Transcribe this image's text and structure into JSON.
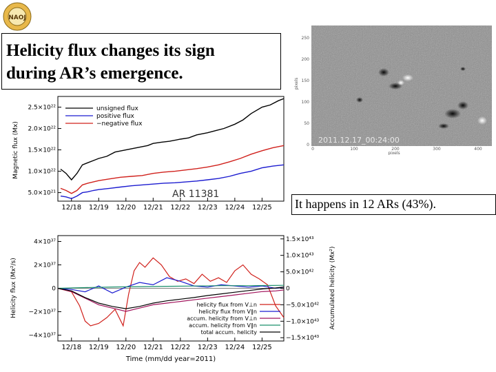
{
  "slide": {
    "title_line1": "Helicity flux changes its sign",
    "title_line2": "during AR’s emergence.",
    "note": "It happens in 12 ARs (43%).",
    "logo_text": "NAOJ"
  },
  "magnetogram": {
    "timestamp": "2011.12.17_00:24:00",
    "xlabel": "pixels",
    "ylabel": "pixels",
    "xticks": [
      "0",
      "100",
      "200",
      "300",
      "400"
    ],
    "yticks": [
      "0",
      "50",
      "100",
      "150",
      "200",
      "250"
    ]
  },
  "chart_data": [
    {
      "type": "line",
      "ylabel": "Magnetic flux (Mx)",
      "annotation": "AR 11381",
      "x_ticks": [
        "12/18",
        "12/19",
        "12/20",
        "12/21",
        "12/22",
        "12/23",
        "12/24",
        "12/25"
      ],
      "y_ticks": [
        "5.0×10²¹",
        "1.0×10²²",
        "1.5×10²²",
        "2.0×10²²",
        "2.5×10²²"
      ],
      "x_range": [
        17.5,
        25.8
      ],
      "ylim": [
        3e+21,
        2.75e+22
      ],
      "legend_position": "top-left",
      "series": [
        {
          "name": "unsigned flux",
          "color": "#000000",
          "x": [
            17.6,
            17.8,
            18.0,
            18.2,
            18.4,
            18.6,
            18.8,
            19.0,
            19.3,
            19.6,
            20.0,
            20.4,
            20.8,
            21.0,
            21.3,
            21.6,
            22.0,
            22.3,
            22.6,
            23.0,
            23.3,
            23.6,
            24.0,
            24.3,
            24.6,
            25.0,
            25.3,
            25.6,
            25.8
          ],
          "values": [
            1.05e+22,
            9.5e+21,
            8e+21,
            9.5e+21,
            1.15e+22,
            1.2e+22,
            1.25e+22,
            1.3e+22,
            1.35e+22,
            1.45e+22,
            1.5e+22,
            1.55e+22,
            1.6e+22,
            1.65e+22,
            1.68e+22,
            1.7e+22,
            1.75e+22,
            1.78e+22,
            1.85e+22,
            1.9e+22,
            1.95e+22,
            2e+22,
            2.1e+22,
            2.2e+22,
            2.35e+22,
            2.5e+22,
            2.55e+22,
            2.65e+22,
            2.7e+22
          ]
        },
        {
          "name": "positive flux",
          "color": "#1b1bd0",
          "x": [
            17.6,
            17.8,
            18.0,
            18.2,
            18.4,
            18.6,
            18.8,
            19.0,
            19.4,
            19.8,
            20.2,
            20.6,
            21.0,
            21.4,
            21.8,
            22.2,
            22.6,
            23.0,
            23.4,
            23.8,
            24.2,
            24.6,
            25.0,
            25.4,
            25.8
          ],
          "values": [
            4.2e+21,
            4e+21,
            3.6e+21,
            4.2e+21,
            5e+21,
            5.2e+21,
            5.5e+21,
            5.7e+21,
            6e+21,
            6.3e+21,
            6.6e+21,
            6.8e+21,
            7e+21,
            7.2e+21,
            7.3e+21,
            7.5e+21,
            7.7e+21,
            8e+21,
            8.3e+21,
            8.8e+21,
            9.5e+21,
            1e+22,
            1.08e+22,
            1.12e+22,
            1.15e+22
          ]
        },
        {
          "name": "−negative flux",
          "color": "#d0201b",
          "x": [
            17.6,
            17.8,
            18.0,
            18.2,
            18.4,
            18.6,
            18.8,
            19.0,
            19.4,
            19.8,
            20.2,
            20.6,
            21.0,
            21.4,
            21.8,
            22.2,
            22.6,
            23.0,
            23.4,
            23.8,
            24.2,
            24.6,
            25.0,
            25.4,
            25.8
          ],
          "values": [
            6e+21,
            5.5e+21,
            4.8e+21,
            5.5e+21,
            6.8e+21,
            7.2e+21,
            7.5e+21,
            7.8e+21,
            8.2e+21,
            8.6e+21,
            8.8e+21,
            9e+21,
            9.5e+21,
            9.8e+21,
            1e+22,
            1.03e+22,
            1.06e+22,
            1.1e+22,
            1.15e+22,
            1.22e+22,
            1.3e+22,
            1.4e+22,
            1.48e+22,
            1.55e+22,
            1.6e+22
          ]
        }
      ]
    },
    {
      "type": "line",
      "xlabel": "Time (mm/dd  year=2011)",
      "ylabel": "Helicity flux (Mx²/s)",
      "y2label": "Accumulated helicity (Mx²)",
      "x_ticks": [
        "12/18",
        "12/19",
        "12/20",
        "12/21",
        "12/22",
        "12/23",
        "12/24",
        "12/25"
      ],
      "y_ticks": [
        "−4×10³⁷",
        "−2×10³⁷",
        "0",
        "2×10³⁷",
        "4×10³⁷"
      ],
      "y2_ticks": [
        "−1.5×10⁴³",
        "−1.0×10⁴³",
        "−5.0×10⁴²",
        "0",
        "5.0×10⁴²",
        "1.0×10⁴³",
        "1.5×10⁴³"
      ],
      "x_range": [
        17.5,
        25.8
      ],
      "ylim": [
        -4.5e+37,
        4.5e+37
      ],
      "y2lim": [
        -1.6e+43,
        1.6e+43
      ],
      "legend_position": "bottom-right",
      "series": [
        {
          "name": "helicity flux from V⊥n",
          "color": "#d0201b",
          "axis": "left",
          "x": [
            17.5,
            18.0,
            18.3,
            18.5,
            18.7,
            19.0,
            19.3,
            19.6,
            19.9,
            20.1,
            20.3,
            20.5,
            20.7,
            21.0,
            21.3,
            21.6,
            21.9,
            22.2,
            22.5,
            22.8,
            23.1,
            23.4,
            23.7,
            24.0,
            24.3,
            24.6,
            24.9,
            25.2,
            25.5,
            25.8
          ],
          "values": [
            0,
            -3e+36,
            -1.5e+37,
            -2.8e+37,
            -3.2e+37,
            -3e+37,
            -2.5e+37,
            -1.8e+37,
            -3.2e+37,
            -5e+36,
            1.5e+37,
            2.2e+37,
            1.8e+37,
            2.6e+37,
            2e+37,
            1e+37,
            6e+36,
            8e+36,
            4e+36,
            1.2e+37,
            6e+36,
            9e+36,
            5e+36,
            1.5e+37,
            2e+37,
            1.2e+37,
            8e+36,
            3e+36,
            -1.5e+37,
            -2.5e+37
          ]
        },
        {
          "name": "helicity flux from V∥n",
          "color": "#1b1bd0",
          "axis": "left",
          "x": [
            17.5,
            18.0,
            18.5,
            19.0,
            19.5,
            20.0,
            20.5,
            21.0,
            21.5,
            22.0,
            22.5,
            23.0,
            23.5,
            24.0,
            24.5,
            25.0,
            25.5,
            25.8
          ],
          "values": [
            0,
            -1e+36,
            -3e+36,
            2e+36,
            -4e+36,
            1e+36,
            5e+36,
            3e+36,
            9e+36,
            6e+36,
            2e+36,
            1e+36,
            3e+36,
            2e+36,
            1e+36,
            2e+36,
            0,
            1e+36
          ]
        },
        {
          "name": "accum. helicity from V⊥n",
          "color": "#a0105a",
          "axis": "right",
          "x": [
            17.5,
            18.0,
            18.5,
            19.0,
            19.5,
            20.0,
            20.5,
            21.0,
            21.5,
            22.0,
            22.5,
            23.0,
            23.5,
            24.0,
            24.5,
            25.0,
            25.5,
            25.8
          ],
          "values": [
            0,
            -1e+42,
            -3e+42,
            -5e+42,
            -6e+42,
            -7e+42,
            -6e+42,
            -5e+42,
            -4.5e+42,
            -4e+42,
            -3.5e+42,
            -3e+42,
            -2.5e+42,
            -2e+42,
            -1.5e+42,
            -1e+42,
            -8e+41,
            -5e+41
          ]
        },
        {
          "name": "accum. helicity from V∥n",
          "color": "#1a8f6a",
          "axis": "right",
          "x": [
            17.5,
            18.5,
            19.5,
            20.5,
            21.5,
            22.5,
            23.5,
            24.5,
            25.8
          ],
          "values": [
            0,
            2e+41,
            4e+41,
            5e+41,
            6e+41,
            7e+41,
            8e+41,
            8e+41,
            9e+41
          ]
        },
        {
          "name": "total accum. helicity",
          "color": "#000000",
          "axis": "right",
          "x": [
            17.5,
            18.0,
            18.5,
            19.0,
            19.5,
            20.0,
            20.5,
            21.0,
            21.5,
            22.0,
            22.5,
            23.0,
            23.5,
            24.0,
            24.5,
            25.0,
            25.5,
            25.8
          ],
          "values": [
            0,
            -8e+41,
            -2.8e+42,
            -4.5e+42,
            -5.5e+42,
            -6.2e+42,
            -5.5e+42,
            -4.5e+42,
            -3.8e+42,
            -3.3e+42,
            -2.8e+42,
            -2.2e+42,
            -1.7e+42,
            -1.2e+42,
            -7e+41,
            -2e+41,
            1e+41,
            4e+41
          ]
        }
      ]
    }
  ]
}
